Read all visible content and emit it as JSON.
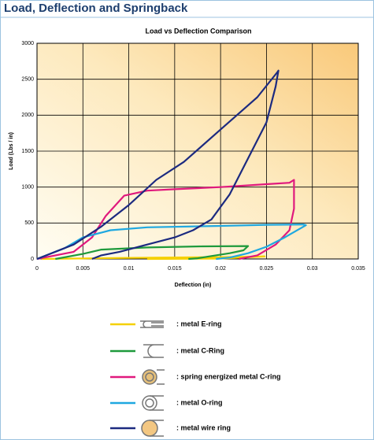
{
  "header": {
    "title": "Load, Deflection and Springback"
  },
  "chart_data": {
    "type": "line",
    "title": "Load vs Deflection Comparison",
    "x_label": "Deflection (in)",
    "y_label": "Load (Lbs / in)",
    "xlim": [
      0,
      0.035
    ],
    "xticks": [
      0,
      0.005,
      0.01,
      0.015,
      0.02,
      0.025,
      0.03,
      0.035
    ],
    "ylim": [
      0,
      3000
    ],
    "yticks": [
      0,
      500,
      1000,
      1500,
      2000,
      2500,
      3000
    ],
    "grid": true,
    "series": [
      {
        "name": ": metal E-ring",
        "color": "#f5d000",
        "x": [
          0.0005,
          0.01,
          0.02,
          0.0248,
          0.02,
          0.012
        ],
        "values": [
          0,
          15,
          25,
          35,
          5,
          0
        ]
      },
      {
        "name": ": metal C-Ring",
        "color": "#1e9a3c",
        "x": [
          0.002,
          0.005,
          0.007,
          0.012,
          0.018,
          0.023,
          0.0225,
          0.021,
          0.019,
          0.0175,
          0.0165
        ],
        "values": [
          0,
          70,
          130,
          160,
          175,
          180,
          120,
          80,
          40,
          10,
          0
        ]
      },
      {
        "name": ": spring energized metal C-ring",
        "color": "#e0197d",
        "x": [
          0,
          0.004,
          0.006,
          0.0075,
          0.0095,
          0.012,
          0.015,
          0.02,
          0.025,
          0.0275,
          0.028,
          0.028,
          0.0275,
          0.026,
          0.024,
          0.022
        ],
        "values": [
          0,
          100,
          300,
          600,
          880,
          950,
          970,
          1000,
          1040,
          1060,
          1100,
          700,
          400,
          200,
          50,
          0
        ]
      },
      {
        "name": ": metal O-ring",
        "color": "#1fa8e0",
        "x": [
          0,
          0.003,
          0.005,
          0.008,
          0.012,
          0.02,
          0.025,
          0.029,
          0.0293,
          0.027,
          0.025,
          0.023,
          0.021,
          0.0195
        ],
        "values": [
          0,
          150,
          300,
          400,
          440,
          460,
          475,
          480,
          470,
          300,
          170,
          80,
          20,
          0
        ]
      },
      {
        "name": ": metal wire ring",
        "color": "#1c2a80",
        "x": [
          0,
          0.004,
          0.007,
          0.01,
          0.013,
          0.016,
          0.02,
          0.024,
          0.0262,
          0.0263,
          0.026,
          0.025,
          0.023,
          0.021,
          0.019,
          0.017,
          0.015,
          0.012,
          0.009,
          0.007,
          0.006
        ],
        "values": [
          0,
          200,
          450,
          750,
          1100,
          1350,
          1800,
          2250,
          2600,
          2620,
          2400,
          1900,
          1400,
          900,
          550,
          400,
          300,
          200,
          100,
          50,
          0
        ]
      }
    ]
  }
}
